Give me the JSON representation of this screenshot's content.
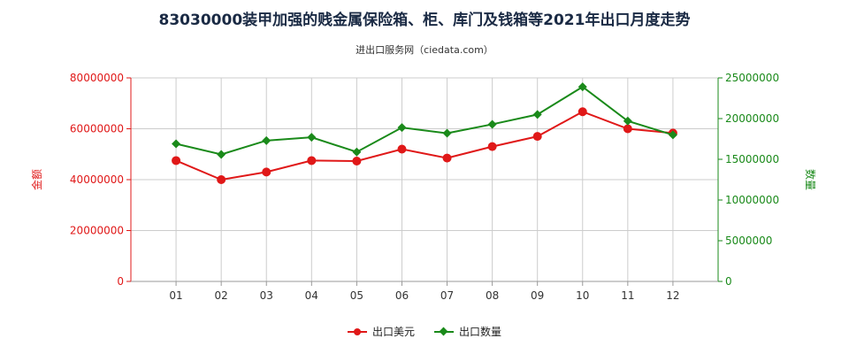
{
  "title": "83030000装甲加强的贱金属保险箱、柜、库门及钱箱等2021年出口月度走势",
  "subtitle": "进出口服务网（ciedata.com）",
  "colors": {
    "left": "#e01818",
    "right": "#1a8a1a",
    "grid": "#cccccc",
    "axis": "#999999"
  },
  "chart_data": {
    "type": "line",
    "categories": [
      "01",
      "02",
      "03",
      "04",
      "05",
      "06",
      "07",
      "08",
      "09",
      "10",
      "11",
      "12"
    ],
    "ylabel_left": "金额",
    "ylabel_right": "数量",
    "ylim_left": [
      0,
      80000000
    ],
    "ylim_right": [
      0,
      25000000
    ],
    "yticks_left": [
      "0",
      "20000000",
      "40000000",
      "60000000",
      "80000000"
    ],
    "yticks_right": [
      "0",
      "5000000",
      "10000000",
      "15000000",
      "20000000",
      "25000000"
    ],
    "grid": true,
    "legend_position": "bottom",
    "series": [
      {
        "name": "出口美元",
        "axis": "left",
        "color": "#e01818",
        "marker": "circle",
        "values": [
          47500000,
          40000000,
          43000000,
          47500000,
          47300000,
          52000000,
          48500000,
          53000000,
          57000000,
          66700000,
          60000000,
          58300000
        ]
      },
      {
        "name": "出口数量",
        "axis": "right",
        "color": "#1a8a1a",
        "marker": "diamond",
        "values": [
          16900000,
          15600000,
          17300000,
          17700000,
          15900000,
          18900000,
          18200000,
          19300000,
          20500000,
          23900000,
          19700000,
          18000000
        ]
      }
    ]
  }
}
